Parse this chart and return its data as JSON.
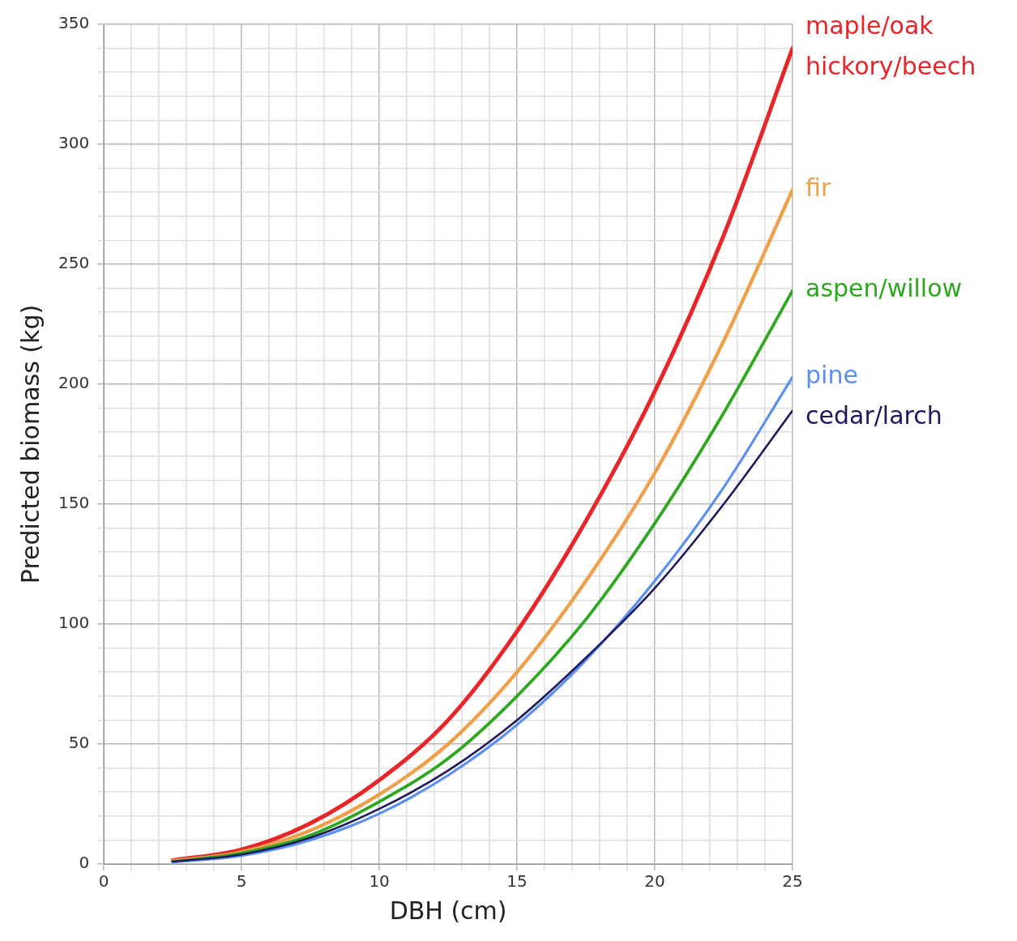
{
  "chart_data": {
    "type": "line",
    "xlabel": "DBH (cm)",
    "ylabel": "Predicted biomass (kg)",
    "x": [
      2.5,
      5,
      7.5,
      10,
      12.5,
      15,
      17.5,
      20,
      22.5,
      25
    ],
    "series": [
      {
        "name": "maple/oak\nhickory/beech",
        "color": "#e8262a",
        "values": [
          1.5,
          6,
          17,
          35,
          60,
          97,
          143,
          197,
          262,
          340
        ]
      },
      {
        "name": "fir",
        "color": "#f0a04b",
        "values": [
          1.2,
          5,
          14,
          29,
          50,
          80,
          118,
          163,
          218,
          281
        ]
      },
      {
        "name": "aspen/willow",
        "color": "#2ea81e",
        "values": [
          1,
          4.5,
          12,
          26,
          44,
          70,
          102,
          142,
          188,
          239
        ]
      },
      {
        "name": "pine",
        "color": "#5b8ff0",
        "values": [
          0.8,
          3.5,
          10,
          21,
          37,
          58,
          85,
          118,
          157,
          203
        ]
      },
      {
        "name": "cedar/larch",
        "color": "#1c1a5c",
        "values": [
          1,
          4,
          11,
          23,
          39,
          60,
          86,
          115,
          150,
          189
        ]
      }
    ],
    "xlim": [
      0,
      25
    ],
    "xticks": [
      0,
      {
        "value": 1,
        "label": null
      },
      {
        "value": 2,
        "label": null
      },
      {
        "value": 3,
        "label": null
      },
      {
        "value": 4,
        "label": null
      },
      5,
      {
        "value": 6,
        "label": null
      },
      {
        "value": 7,
        "label": null
      },
      {
        "value": 8,
        "label": null
      },
      {
        "value": 9,
        "label": null
      },
      10,
      {
        "value": 11,
        "label": null
      },
      {
        "value": 12,
        "label": null
      },
      {
        "value": 13,
        "label": null
      },
      {
        "value": 14,
        "label": null
      },
      15,
      {
        "value": 16,
        "label": null
      },
      {
        "value": 17,
        "label": null
      },
      {
        "value": 18,
        "label": null
      },
      {
        "value": 19,
        "label": null
      },
      20,
      {
        "value": 21,
        "label": null
      },
      {
        "value": 22,
        "label": null
      },
      {
        "value": 23,
        "label": null
      },
      {
        "value": 24,
        "label": null
      },
      25
    ],
    "ylim": [
      0,
      350
    ],
    "yticks": [
      0,
      {
        "value": 10,
        "label": null
      },
      {
        "value": 20,
        "label": null
      },
      {
        "value": 30,
        "label": null
      },
      {
        "value": 40,
        "label": null
      },
      50,
      {
        "value": 60,
        "label": null
      },
      {
        "value": 70,
        "label": null
      },
      {
        "value": 80,
        "label": null
      },
      {
        "value": 90,
        "label": null
      },
      100,
      {
        "value": 110,
        "label": null
      },
      {
        "value": 120,
        "label": null
      },
      {
        "value": 130,
        "label": null
      },
      {
        "value": 140,
        "label": null
      },
      150,
      {
        "value": 160,
        "label": null
      },
      {
        "value": 170,
        "label": null
      },
      {
        "value": 180,
        "label": null
      },
      {
        "value": 190,
        "label": null
      },
      200,
      {
        "value": 210,
        "label": null
      },
      {
        "value": 220,
        "label": null
      },
      {
        "value": 230,
        "label": null
      },
      {
        "value": 240,
        "label": null
      },
      250,
      {
        "value": 260,
        "label": null
      },
      {
        "value": 270,
        "label": null
      },
      {
        "value": 280,
        "label": null
      },
      {
        "value": 290,
        "label": null
      },
      300,
      {
        "value": 310,
        "label": null
      },
      {
        "value": 320,
        "label": null
      },
      {
        "value": 330,
        "label": null
      },
      {
        "value": 340,
        "label": null
      },
      350
    ],
    "grid": true,
    "legend": "right",
    "marker": "none",
    "line_style": "solid"
  }
}
